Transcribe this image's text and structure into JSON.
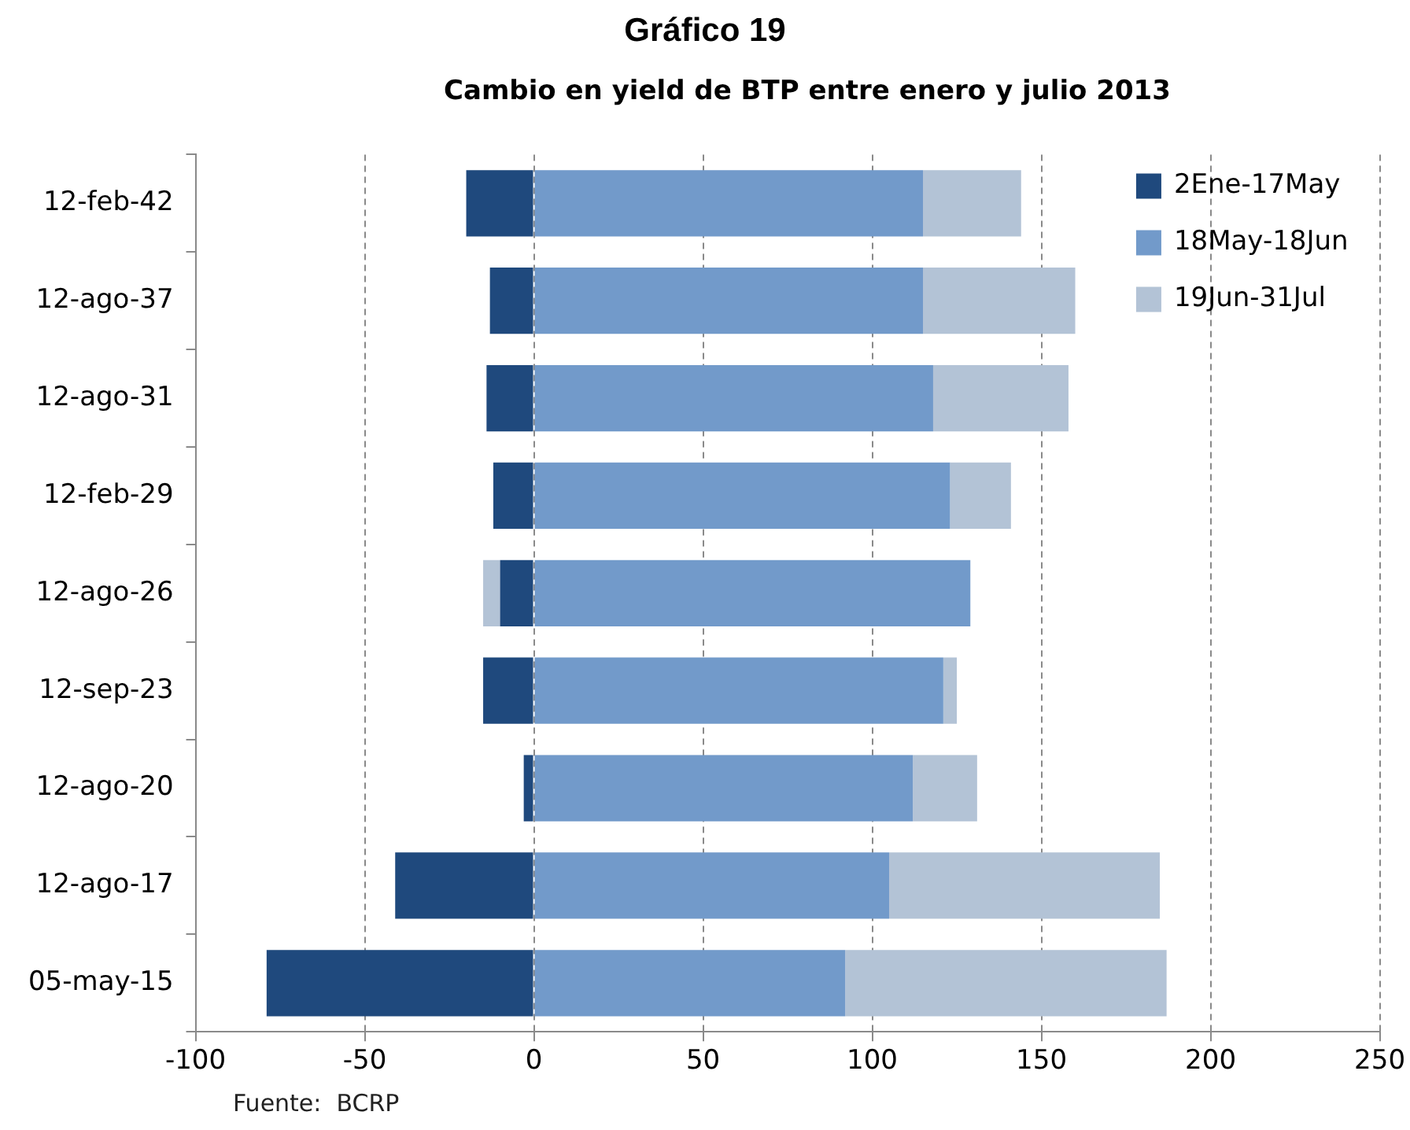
{
  "chart_data": {
    "type": "bar",
    "orientation": "horizontal",
    "stacked": true,
    "title": "Gráfico 19",
    "subtitle": "Cambio en yield de BTP entre enero y julio 2013",
    "categories": [
      "12-feb-42",
      "12-ago-37",
      "12-ago-31",
      "12-feb-29",
      "12-ago-26",
      "12-sep-23",
      "12-ago-20",
      "12-ago-17",
      "05-may-15"
    ],
    "series": [
      {
        "name": "2Ene-17May",
        "color": "#1f497d",
        "values": [
          -20,
          -13,
          -14,
          -12,
          -10,
          -15,
          -3,
          -41,
          -79
        ]
      },
      {
        "name": "18May-18Jun",
        "color": "#729aca",
        "values": [
          115,
          115,
          118,
          123,
          129,
          121,
          112,
          105,
          92
        ]
      },
      {
        "name": "19Jun-31Jul",
        "color": "#b3c3d6",
        "values": [
          29,
          45,
          40,
          18,
          -5,
          4,
          19,
          80,
          95
        ]
      }
    ],
    "xlim": [
      -100,
      250
    ],
    "xticks": [
      -100,
      -50,
      0,
      50,
      100,
      150,
      200,
      250
    ],
    "grid": "x",
    "legend": "top right",
    "annotations": [
      "Fuente:  BCRP"
    ]
  }
}
